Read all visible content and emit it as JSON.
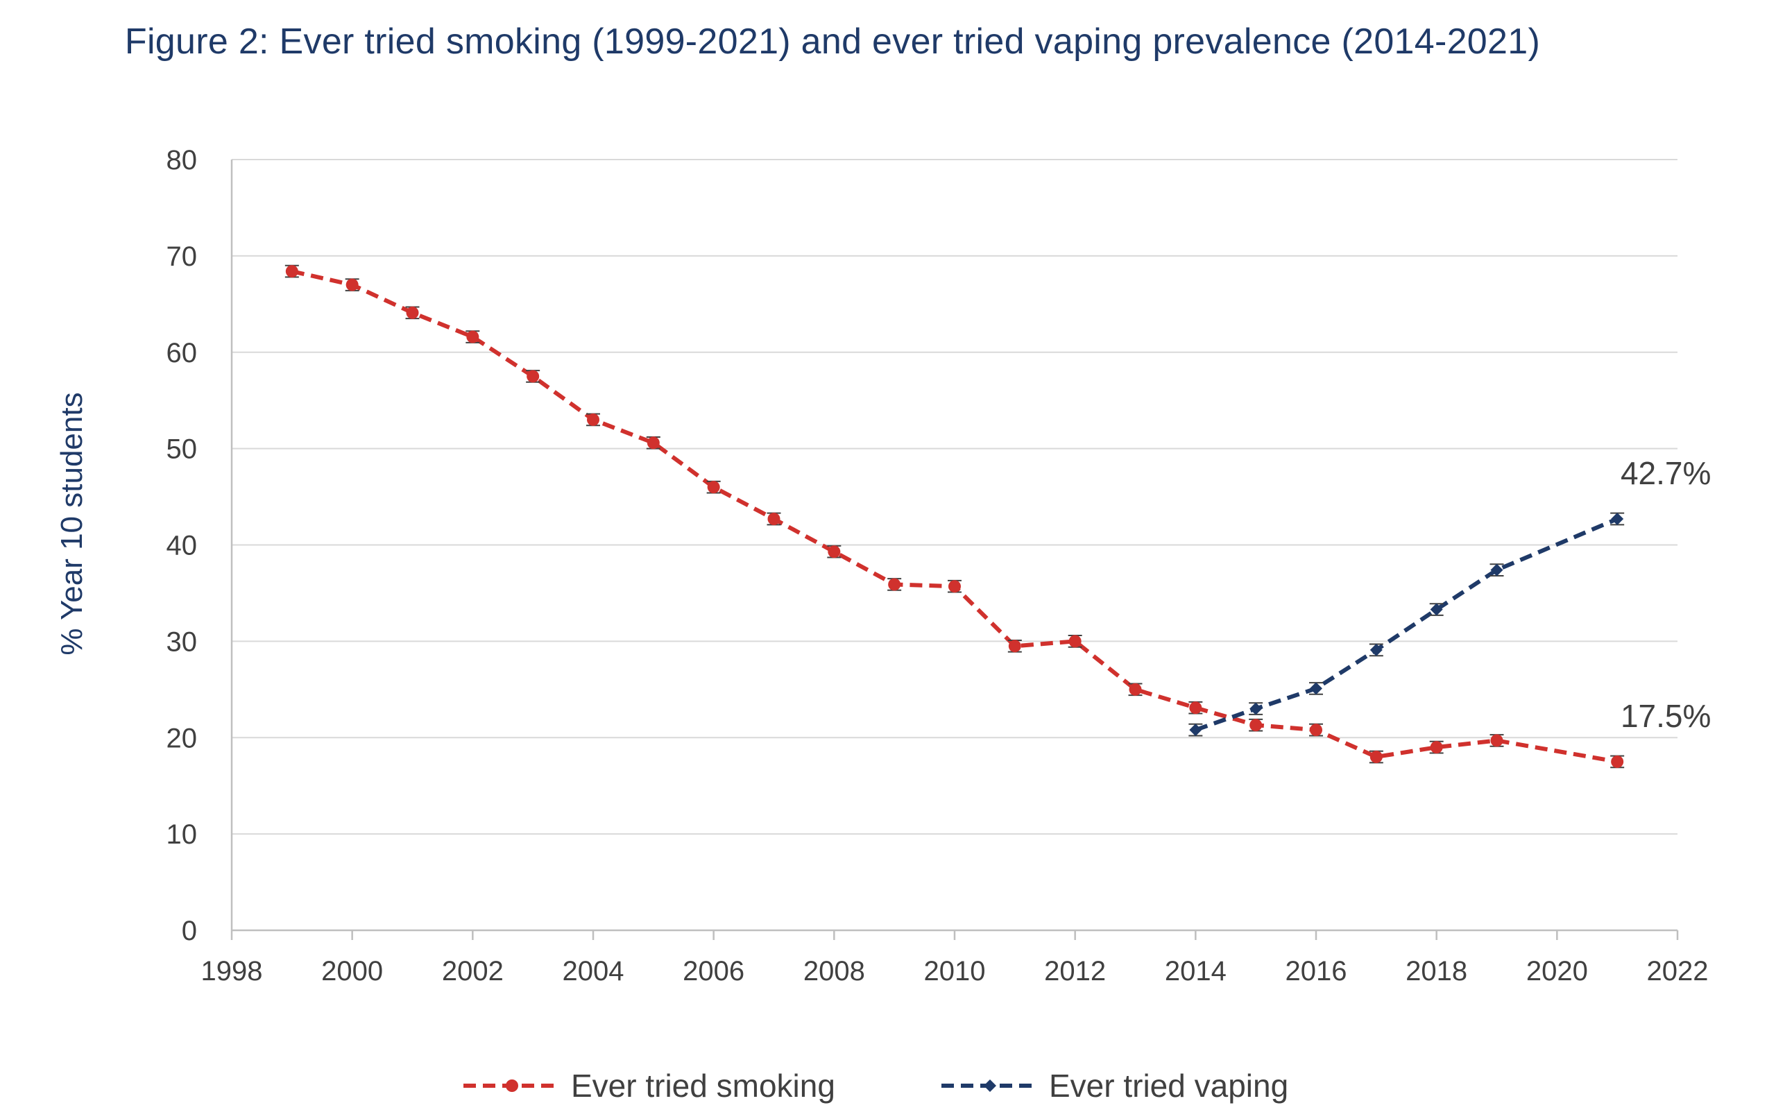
{
  "chart_data": {
    "type": "line",
    "title": "Figure 2: Ever tried smoking (1999-2021) and ever tried vaping prevalence (2014-2021)",
    "ylabel": "% Year 10 students",
    "xlabel": "",
    "xlim": [
      1998,
      2022
    ],
    "ylim": [
      0,
      80
    ],
    "x_ticks": [
      1998,
      2000,
      2002,
      2004,
      2006,
      2008,
      2010,
      2012,
      2014,
      2016,
      2018,
      2020,
      2022
    ],
    "y_ticks": [
      0,
      10,
      20,
      30,
      40,
      50,
      60,
      70,
      80
    ],
    "grid": "horizontal",
    "legend_position": "bottom",
    "series": [
      {
        "name": "Ever tried smoking",
        "color": "#d0312d",
        "marker": "circle",
        "line_style": "dashed",
        "x": [
          1999,
          2000,
          2001,
          2002,
          2003,
          2004,
          2005,
          2006,
          2007,
          2008,
          2009,
          2010,
          2011,
          2012,
          2013,
          2014,
          2015,
          2016,
          2017,
          2018,
          2019,
          2021
        ],
        "values": [
          68.4,
          67.0,
          64.1,
          61.6,
          57.5,
          53.0,
          50.6,
          46.0,
          42.7,
          39.3,
          35.9,
          35.7,
          29.5,
          30.0,
          25.0,
          23.1,
          21.3,
          20.8,
          18.0,
          19.0,
          19.7,
          17.5
        ],
        "error": [
          0.6,
          0.6,
          0.6,
          0.6,
          0.6,
          0.6,
          0.6,
          0.6,
          0.6,
          0.6,
          0.6,
          0.6,
          0.6,
          0.6,
          0.6,
          0.6,
          0.6,
          0.6,
          0.6,
          0.6,
          0.6,
          0.6
        ]
      },
      {
        "name": "Ever tried vaping",
        "color": "#1f3a68",
        "marker": "diamond",
        "line_style": "dashed",
        "x": [
          2014,
          2015,
          2016,
          2017,
          2018,
          2019,
          2021
        ],
        "values": [
          20.8,
          23.0,
          25.1,
          29.1,
          33.3,
          37.4,
          42.7
        ],
        "error": [
          0.6,
          0.6,
          0.6,
          0.6,
          0.6,
          0.6,
          0.6
        ]
      }
    ],
    "annotations": [
      {
        "text": "42.7%",
        "series": "Ever tried vaping",
        "x": 2021,
        "y": 42.7
      },
      {
        "text": "17.5%",
        "series": "Ever tried smoking",
        "x": 2021,
        "y": 17.5
      }
    ]
  }
}
